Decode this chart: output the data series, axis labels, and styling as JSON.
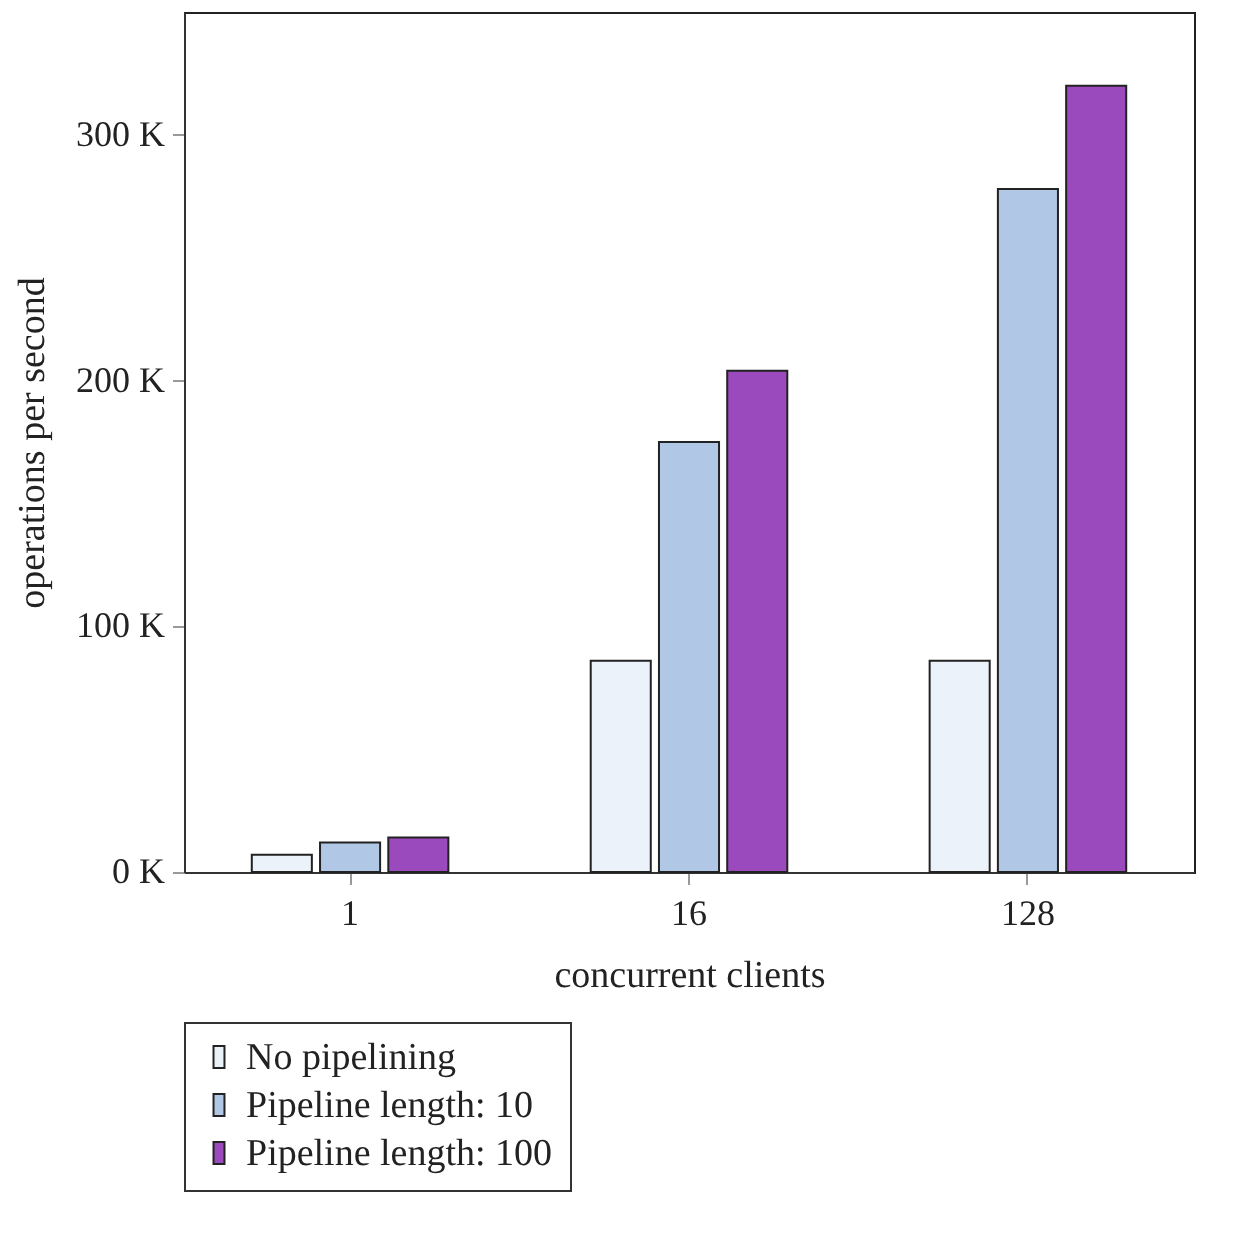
{
  "chart_data": {
    "type": "bar",
    "xlabel": "concurrent clients",
    "ylabel": "operations per second",
    "categories": [
      "1",
      "16",
      "128"
    ],
    "series": [
      {
        "name": "No pipelining",
        "color": "#ebf2fa",
        "values": [
          7,
          86,
          86
        ]
      },
      {
        "name": "Pipeline length: 10",
        "color": "#b0c7e5",
        "values": [
          12,
          175,
          278
        ]
      },
      {
        "name": "Pipeline length: 100",
        "color": "#9b4abd",
        "values": [
          14,
          204,
          320
        ]
      }
    ],
    "ylim": [
      0,
      350
    ],
    "yticks": [
      {
        "value": 0,
        "label": "0 K"
      },
      {
        "value": 100,
        "label": "100 K"
      },
      {
        "value": 200,
        "label": "200 K"
      },
      {
        "value": 300,
        "label": "300 K"
      }
    ],
    "grid": false,
    "legend": "bottom"
  }
}
